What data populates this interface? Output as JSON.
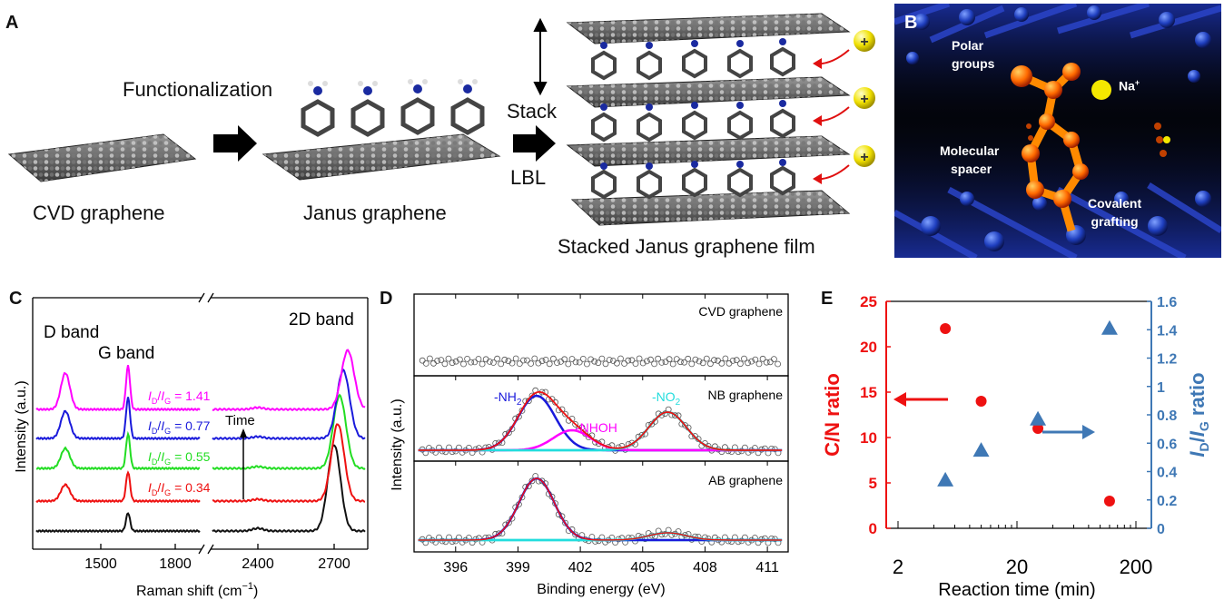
{
  "panelA": {
    "label": "A",
    "functionalization": "Functionalization",
    "stack": "Stack",
    "lbl": "LBL",
    "cvd_caption": "CVD graphene",
    "janus_caption": "Janus graphene",
    "stacked_caption": "Stacked Janus graphene film",
    "plus": "+"
  },
  "panelB": {
    "label": "B",
    "polar1": "Polar",
    "polar2": "groups",
    "na": "Na",
    "na_sup": "+",
    "mol1": "Molecular",
    "mol2": "spacer",
    "cov1": "Covalent",
    "cov2": "grafting"
  },
  "panelC": {
    "label": "C",
    "ylabel": "Intensity (a.u.)",
    "xlabel": "Raman shift (cm",
    "xlabel_sup": "−1",
    "xlabel_end": ")",
    "d_band": "D band",
    "g_band": "G band",
    "band_2d": "2D band",
    "time": "Time",
    "ratios": [
      {
        "value": "1.41",
        "color": "#ff00ff"
      },
      {
        "value": "0.77",
        "color": "#1a1adb"
      },
      {
        "value": "0.55",
        "color": "#22dd22"
      },
      {
        "value": "0.34",
        "color": "#ee1111"
      }
    ],
    "ticks_left": [
      "1500",
      "1800"
    ],
    "ticks_right": [
      "2400",
      "2700"
    ]
  },
  "panelD": {
    "label": "D",
    "ylabel": "Intensity (a.u.)",
    "xlabel": "Binding energy (eV)",
    "sub1": "CVD graphene",
    "sub2": "NB graphene",
    "sub3": "AB graphene",
    "nh2": "-NH",
    "nh2_sub": "2",
    "nhoh": "-NHOH",
    "no2": "-NO",
    "no2_sub": "2",
    "xticks": [
      "396",
      "399",
      "402",
      "405",
      "408",
      "411"
    ]
  },
  "panelE": {
    "label": "E",
    "ylabel_left": "C/N ratio",
    "ylabel_right_I": "I",
    "ylabel_right_D": "D",
    "ylabel_right_slash": "/",
    "ylabel_right_G": "G",
    "ylabel_right_ratio": " ratio",
    "xlabel": "Reaction time (min)",
    "left_ticks": [
      "0",
      "5",
      "10",
      "15",
      "20",
      "25"
    ],
    "right_ticks": [
      "0",
      "0.2",
      "0.4",
      "0.6",
      "0.8",
      "1",
      "1.2",
      "1.4",
      "1.6"
    ],
    "x_ticks": [
      "2",
      "20",
      "200"
    ]
  },
  "chart_data": [
    {
      "type": "scatter",
      "panel": "E",
      "xlabel": "Reaction time (min)",
      "xscale": "log",
      "xlim": [
        2,
        200
      ],
      "series": [
        {
          "name": "C/N ratio",
          "axis": "left",
          "ylim": [
            0,
            25
          ],
          "color": "#ee1111",
          "marker": "circle",
          "x": [
            5,
            10,
            30,
            120
          ],
          "y": [
            22,
            14,
            11,
            3
          ]
        },
        {
          "name": "ID/IG ratio",
          "axis": "right",
          "ylim": [
            0,
            1.6
          ],
          "color": "#3f78b5",
          "marker": "triangle",
          "x": [
            5,
            10,
            30,
            120
          ],
          "y": [
            0.34,
            0.55,
            0.77,
            1.41
          ]
        }
      ]
    },
    {
      "type": "line",
      "panel": "C",
      "xlabel": "Raman shift (cm−1)",
      "ylabel": "Intensity (a.u.)",
      "series": [
        {
          "color": "#111111",
          "ratio": null
        },
        {
          "color": "#ee1111",
          "ratio": 0.34
        },
        {
          "color": "#22dd22",
          "ratio": 0.55
        },
        {
          "color": "#1a1adb",
          "ratio": 0.77
        },
        {
          "color": "#ff00ff",
          "ratio": 1.41
        }
      ]
    },
    {
      "type": "line",
      "panel": "D",
      "xlabel": "Binding energy (eV)",
      "ylabel": "Intensity (a.u.)",
      "xlim": [
        394,
        412
      ],
      "peaks": [
        {
          "name": "-NH2",
          "center": 399.9,
          "color": "#1a1adb"
        },
        {
          "name": "-NHOH",
          "center": 401.6,
          "color": "#ff00ff"
        },
        {
          "name": "-NO2",
          "center": 406.2,
          "color": "#22dddd"
        }
      ]
    }
  ]
}
